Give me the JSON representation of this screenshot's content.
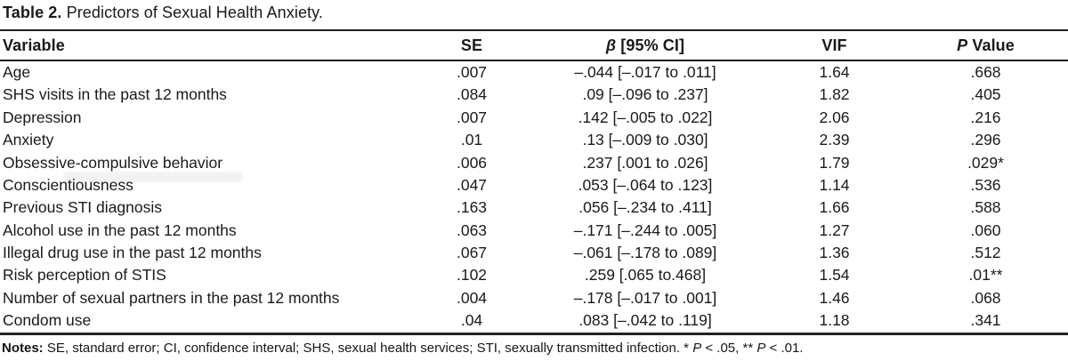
{
  "title": {
    "label": "Table 2.",
    "text": "Predictors of Sexual Health Anxiety."
  },
  "table": {
    "headers": {
      "variable": "Variable",
      "se": "SE",
      "beta_symbol": "β",
      "beta_rest": "[95% CI]",
      "vif": "VIF",
      "p_italic": "P",
      "p_rest": "Value"
    },
    "rows": [
      {
        "variable": "Age",
        "se": ".007",
        "beta_ci": "–.044 [–.017 to .011]",
        "vif": "1.64",
        "p": ".668"
      },
      {
        "variable": "SHS visits in the past 12 months",
        "se": ".084",
        "beta_ci": ".09 [–.096 to .237]",
        "vif": "1.82",
        "p": ".405"
      },
      {
        "variable": "Depression",
        "se": ".007",
        "beta_ci": ".142 [–.005 to .022]",
        "vif": "2.06",
        "p": ".216"
      },
      {
        "variable": "Anxiety",
        "se": ".01",
        "beta_ci": ".13 [–.009 to .030]",
        "vif": "2.39",
        "p": ".296"
      },
      {
        "variable": "Obsessive-compulsive behavior",
        "se": ".006",
        "beta_ci": ".237 [.001 to .026]",
        "vif": "1.79",
        "p": ".029*"
      },
      {
        "variable": "Conscientiousness",
        "se": ".047",
        "beta_ci": ".053 [–.064 to .123]",
        "vif": "1.14",
        "p": ".536"
      },
      {
        "variable": "Previous STI diagnosis",
        "se": ".163",
        "beta_ci": ".056 [–.234 to .411]",
        "vif": "1.66",
        "p": ".588"
      },
      {
        "variable": "Alcohol use in the past 12 months",
        "se": ".063",
        "beta_ci": "–.171 [–.244 to .005]",
        "vif": "1.27",
        "p": ".060"
      },
      {
        "variable": "Illegal drug use in the past 12 months",
        "se": ".067",
        "beta_ci": "–.061 [–.178 to .089]",
        "vif": "1.36",
        "p": ".512"
      },
      {
        "variable": "Risk perception of STIS",
        "se": ".102",
        "beta_ci": ".259 [.065 to.468]",
        "vif": "1.54",
        "p": ".01**"
      },
      {
        "variable": "Number of sexual partners in the past 12 months",
        "se": ".004",
        "beta_ci": "–.178 [–.017 to .001]",
        "vif": "1.46",
        "p": ".068"
      },
      {
        "variable": "Condom use",
        "se": ".04",
        "beta_ci": ".083 [–.042 to .119]",
        "vif": "1.18",
        "p": ".341"
      }
    ]
  },
  "notes": {
    "label": "Notes:",
    "body": "SE, standard error; CI, confidence interval; SHS, sexual health services; STI, sexually transmitted infection. *",
    "sig1_p": "P",
    "sig1_rest": "< .05, **",
    "sig2_p": "P",
    "sig2_rest": "< .01."
  },
  "colors": {
    "text": "#1a1a1a",
    "rule": "#212121",
    "background": "#ffffff"
  }
}
